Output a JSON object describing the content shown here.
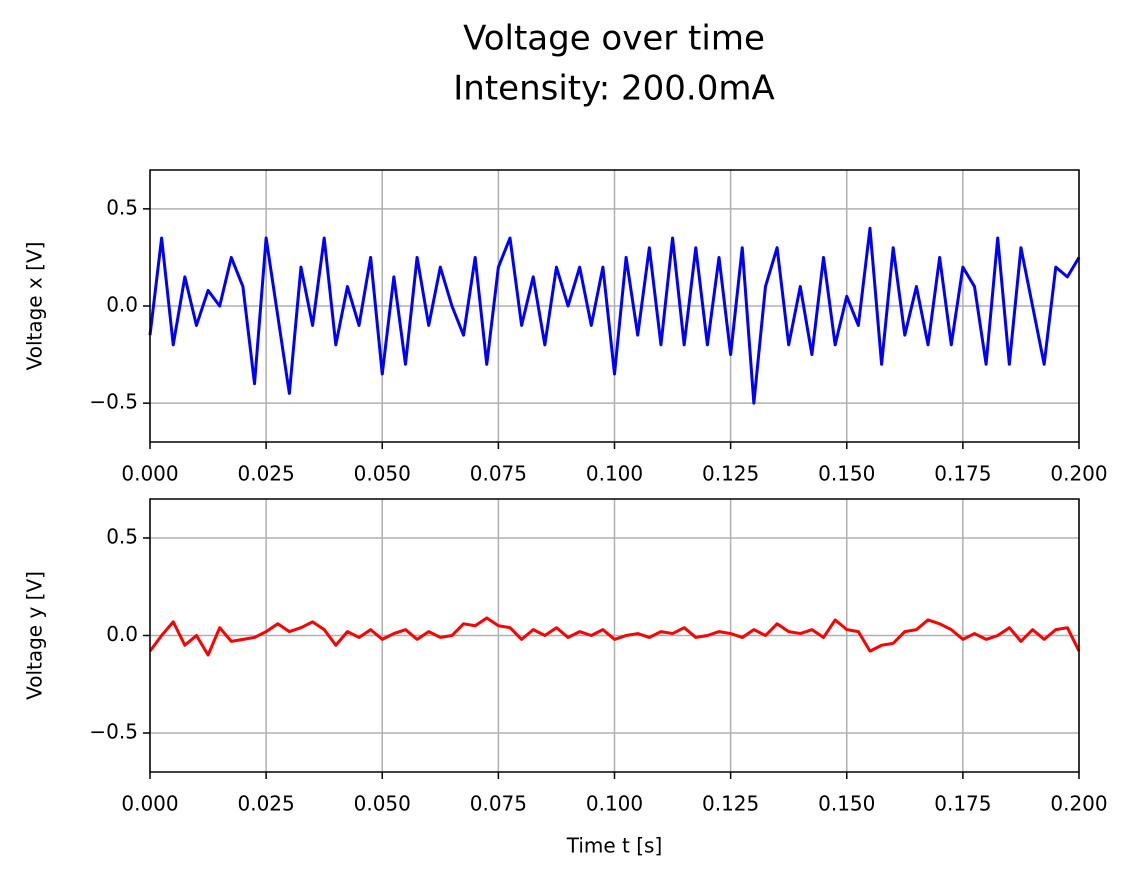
{
  "title": "Voltage over time",
  "subtitle": "Intensity: 200.0mA",
  "chart_data": [
    {
      "type": "line",
      "ylabel": "Voltage x [V]",
      "color": "#0000ff",
      "grid": true,
      "xlim": [
        0,
        0.2
      ],
      "ylim": [
        -0.7,
        0.7
      ],
      "xticks": [
        {
          "value": 0,
          "label": "0.000"
        },
        {
          "value": 0.025,
          "label": "0.025"
        },
        {
          "value": 0.05,
          "label": "0.050"
        },
        {
          "value": 0.075,
          "label": "0.075"
        },
        {
          "value": 0.1,
          "label": "0.100"
        },
        {
          "value": 0.125,
          "label": "0.125"
        },
        {
          "value": 0.15,
          "label": "0.150"
        },
        {
          "value": 0.175,
          "label": "0.175"
        },
        {
          "value": 0.2,
          "label": "0.200"
        }
      ],
      "yticks": [
        {
          "value": -0.5,
          "label": "−0.5"
        },
        {
          "value": 0,
          "label": "0.0"
        },
        0.5
      ],
      "x": [
        0,
        0.0025,
        0.005,
        0.0075,
        0.01,
        0.0125,
        0.015,
        0.0175,
        0.02,
        0.0225,
        0.025,
        0.0275,
        0.03,
        0.0325,
        0.035,
        0.0375,
        0.04,
        0.0425,
        0.045,
        0.0475,
        0.05,
        0.0525,
        0.055,
        0.0575,
        0.06,
        0.0625,
        0.065,
        0.0675,
        0.07,
        0.0725,
        0.075,
        0.0775,
        0.08,
        0.0825,
        0.085,
        0.0875,
        0.09,
        0.0925,
        0.095,
        0.0975,
        0.1,
        0.1025,
        0.105,
        0.1075,
        0.11,
        0.1125,
        0.115,
        0.1175,
        0.12,
        0.1225,
        0.125,
        0.1275,
        0.13,
        0.1325,
        0.135,
        0.1375,
        0.14,
        0.1425,
        0.145,
        0.1475,
        0.15,
        0.1525,
        0.155,
        0.1575,
        0.16,
        0.1625,
        0.165,
        0.1675,
        0.17,
        0.1725,
        0.175,
        0.1775,
        0.18,
        0.1825,
        0.185,
        0.1875,
        0.19,
        0.1925,
        0.195,
        0.1975,
        0.2
      ],
      "values": [
        -0.15,
        0.35,
        -0.2,
        0.15,
        -0.1,
        0.08,
        0.0,
        0.25,
        0.1,
        -0.4,
        0.35,
        -0.05,
        -0.45,
        0.2,
        -0.1,
        0.35,
        -0.2,
        0.1,
        -0.1,
        0.25,
        -0.35,
        0.15,
        -0.3,
        0.25,
        -0.1,
        0.2,
        0.0,
        -0.15,
        0.25,
        -0.3,
        0.2,
        0.35,
        -0.1,
        0.15,
        -0.2,
        0.2,
        0.0,
        0.2,
        -0.1,
        0.2,
        -0.35,
        0.25,
        -0.15,
        0.3,
        -0.2,
        0.35,
        -0.2,
        0.3,
        -0.2,
        0.25,
        -0.25,
        0.3,
        -0.5,
        0.1,
        0.3,
        -0.2,
        0.1,
        -0.25,
        0.25,
        -0.2,
        0.05,
        -0.1,
        0.4,
        -0.3,
        0.3,
        -0.15,
        0.1,
        -0.2,
        0.25,
        -0.2,
        0.2,
        0.1,
        -0.3,
        0.35,
        -0.3,
        0.3,
        0.0,
        -0.3,
        0.2,
        0.15,
        0.25
      ]
    },
    {
      "type": "line",
      "ylabel": "Voltage y [V]",
      "xlabel": "Time t [s]",
      "color": "#ff0000",
      "grid": true,
      "xlim": [
        0,
        0.2
      ],
      "ylim": [
        -0.7,
        0.7
      ],
      "xticks": [
        {
          "value": 0,
          "label": "0.000"
        },
        {
          "value": 0.025,
          "label": "0.025"
        },
        {
          "value": 0.05,
          "label": "0.050"
        },
        {
          "value": 0.075,
          "label": "0.075"
        },
        {
          "value": 0.1,
          "label": "0.100"
        },
        {
          "value": 0.125,
          "label": "0.125"
        },
        {
          "value": 0.15,
          "label": "0.150"
        },
        {
          "value": 0.175,
          "label": "0.175"
        },
        {
          "value": 0.2,
          "label": "0.200"
        }
      ],
      "yticks": [
        {
          "value": -0.5,
          "label": "−0.5"
        },
        {
          "value": 0,
          "label": "0.0"
        },
        0.5
      ],
      "x": [
        0,
        0.0025,
        0.005,
        0.0075,
        0.01,
        0.0125,
        0.015,
        0.0175,
        0.02,
        0.0225,
        0.025,
        0.0275,
        0.03,
        0.0325,
        0.035,
        0.0375,
        0.04,
        0.0425,
        0.045,
        0.0475,
        0.05,
        0.0525,
        0.055,
        0.0575,
        0.06,
        0.0625,
        0.065,
        0.0675,
        0.07,
        0.0725,
        0.075,
        0.0775,
        0.08,
        0.0825,
        0.085,
        0.0875,
        0.09,
        0.0925,
        0.095,
        0.0975,
        0.1,
        0.1025,
        0.105,
        0.1075,
        0.11,
        0.1125,
        0.115,
        0.1175,
        0.12,
        0.1225,
        0.125,
        0.1275,
        0.13,
        0.1325,
        0.135,
        0.1375,
        0.14,
        0.1425,
        0.145,
        0.1475,
        0.15,
        0.1525,
        0.155,
        0.1575,
        0.16,
        0.1625,
        0.165,
        0.1675,
        0.17,
        0.1725,
        0.175,
        0.1775,
        0.18,
        0.1825,
        0.185,
        0.1875,
        0.19,
        0.1925,
        0.195,
        0.1975,
        0.2
      ],
      "values": [
        -0.08,
        0.0,
        0.07,
        -0.05,
        0.0,
        -0.1,
        0.04,
        -0.03,
        -0.02,
        -0.01,
        0.02,
        0.06,
        0.02,
        0.04,
        0.07,
        0.03,
        -0.05,
        0.02,
        -0.01,
        0.03,
        -0.02,
        0.01,
        0.03,
        -0.02,
        0.02,
        -0.01,
        0.0,
        0.06,
        0.05,
        0.09,
        0.05,
        0.04,
        -0.02,
        0.03,
        0.0,
        0.04,
        -0.01,
        0.02,
        0.0,
        0.03,
        -0.02,
        0.0,
        0.01,
        -0.01,
        0.02,
        0.01,
        0.04,
        -0.01,
        0.0,
        0.02,
        0.01,
        -0.01,
        0.03,
        0.0,
        0.06,
        0.02,
        0.01,
        0.03,
        -0.01,
        0.08,
        0.03,
        0.02,
        -0.08,
        -0.05,
        -0.04,
        0.02,
        0.03,
        0.08,
        0.06,
        0.03,
        -0.02,
        0.01,
        -0.02,
        0.0,
        0.04,
        -0.03,
        0.03,
        -0.02,
        0.03,
        0.04,
        -0.08
      ]
    }
  ]
}
